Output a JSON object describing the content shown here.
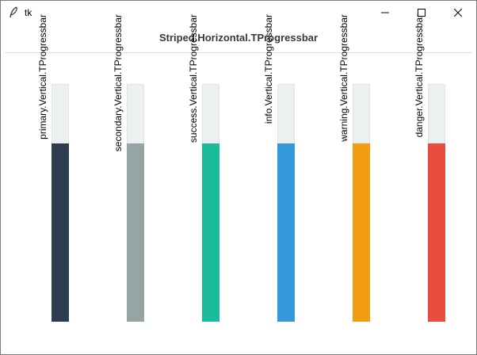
{
  "window": {
    "title": "tk"
  },
  "header": {
    "label": "Striped.Horizontal.TProgressbar"
  },
  "progressbars": [
    {
      "label": "primary.Vertical.TProgressbar",
      "value": 0.75,
      "color": "#2c3e50"
    },
    {
      "label": "secondary.Vertical.TProgressbar",
      "value": 0.75,
      "color": "#95a5a6"
    },
    {
      "label": "success.Vertical.TProgressbar",
      "value": 0.75,
      "color": "#1abc9c"
    },
    {
      "label": "info.Vertical.TProgressbar",
      "value": 0.75,
      "color": "#3498db"
    },
    {
      "label": "warning.Vertical.TProgressbar",
      "value": 0.75,
      "color": "#f39c12"
    },
    {
      "label": "danger.Vertical.TProgressbar",
      "value": 0.75,
      "color": "#e74c3c"
    }
  ],
  "colors": {
    "trough": "#ecf0f1",
    "header_text": "#343a40"
  },
  "icons": {
    "app": "feather-icon",
    "minimize": "minimize-icon",
    "maximize": "maximize-icon",
    "close": "close-icon"
  }
}
